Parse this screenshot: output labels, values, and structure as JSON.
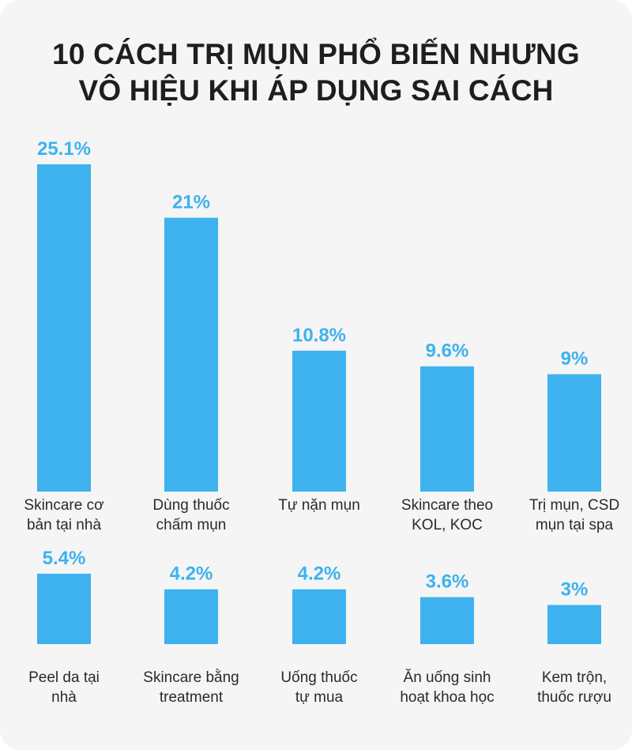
{
  "title": {
    "line1": "10 CÁCH TRỊ MỤN PHỔ BIẾN NHƯNG",
    "line2": "VÔ HIỆU KHI ÁP DỤNG SAI CÁCH"
  },
  "colors": {
    "bar": "#3db2ee",
    "background": "#f5f5f5",
    "title": "#1e1e1e",
    "label": "#2a2a2a"
  },
  "chart_data": {
    "type": "bar",
    "unit": "%",
    "grid": false,
    "legend": "none",
    "rows": [
      {
        "categories": [
          [
            "Skincare cơ",
            "bản tại nhà"
          ],
          [
            "Dùng thuốc",
            "chấm mụn"
          ],
          [
            "Tự nặn mụn"
          ],
          [
            "Skincare theo",
            "KOL, KOC"
          ],
          [
            "Trị mụn, CSD",
            "mụn tại spa"
          ]
        ],
        "values": [
          25.1,
          21,
          10.8,
          9.6,
          9
        ],
        "value_labels": [
          "25.1%",
          "21%",
          "10.8%",
          "9.6%",
          "9%"
        ]
      },
      {
        "categories": [
          [
            "Peel da tại",
            "nhà"
          ],
          [
            "Skincare bằng",
            "treatment"
          ],
          [
            "Uống thuốc",
            "tự mua"
          ],
          [
            "Ăn uống sinh",
            "hoạt khoa học"
          ],
          [
            "Kem trộn,",
            "thuốc rượu"
          ]
        ],
        "values": [
          5.4,
          4.2,
          4.2,
          3.6,
          3
        ],
        "value_labels": [
          "5.4%",
          "4.2%",
          "4.2%",
          "3.6%",
          "3%"
        ]
      }
    ]
  }
}
